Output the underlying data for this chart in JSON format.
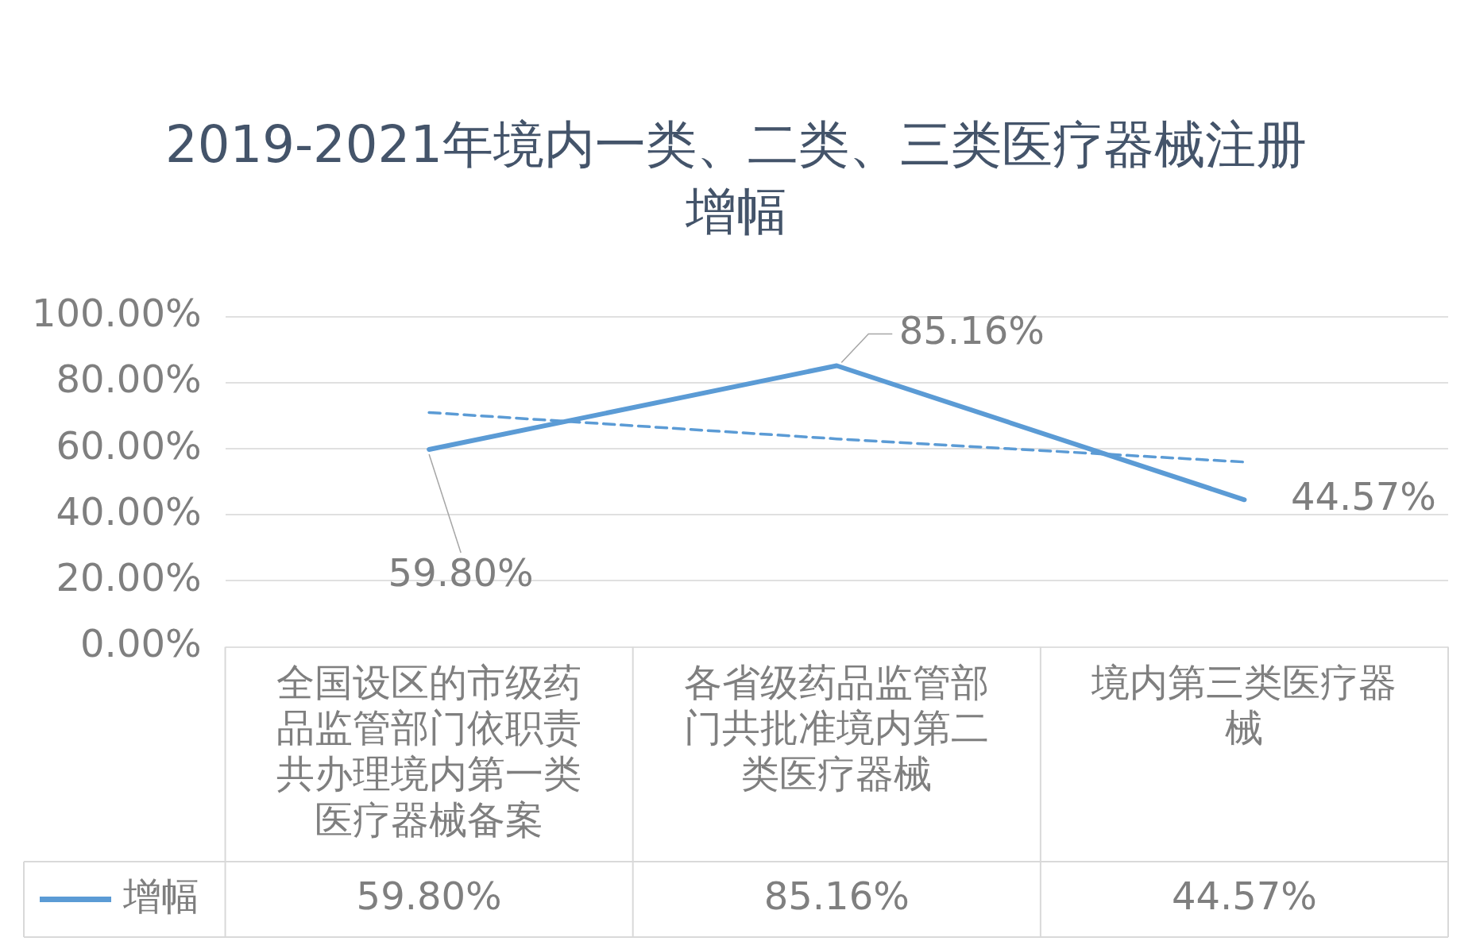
{
  "chart_data": {
    "type": "line",
    "title": "2019-2021年境内一类、二类、三类医疗器械注册增幅",
    "categories": [
      "全国设区的市级药品监管部门依职责共办理境内第一类医疗器械备案",
      "各省级药品监管部门共批准境内第二类医疗器械",
      "境内第三类医疗器械"
    ],
    "series": [
      {
        "name": "增幅",
        "color": "#5b9bd5",
        "values": [
          59.8,
          85.16,
          44.57
        ],
        "value_labels": [
          "59.80%",
          "85.16%",
          "44.57%"
        ]
      },
      {
        "type": "line",
        "color": "#5b9bd5",
        "line_style": "dashed",
        "values": [
          71,
          63,
          56
        ]
      }
    ],
    "ylim": [
      0,
      100
    ],
    "yticks": [
      {
        "value": 0,
        "label": "0.00%"
      },
      {
        "value": 20,
        "label": "20.00%"
      },
      {
        "value": 40,
        "label": "40.00%"
      },
      {
        "value": 60,
        "label": "60.00%"
      },
      {
        "value": 80,
        "label": "80.00%"
      },
      {
        "value": 100,
        "label": "100.00%"
      }
    ],
    "grid": "y",
    "legend": "bottom left",
    "marker": "none"
  }
}
